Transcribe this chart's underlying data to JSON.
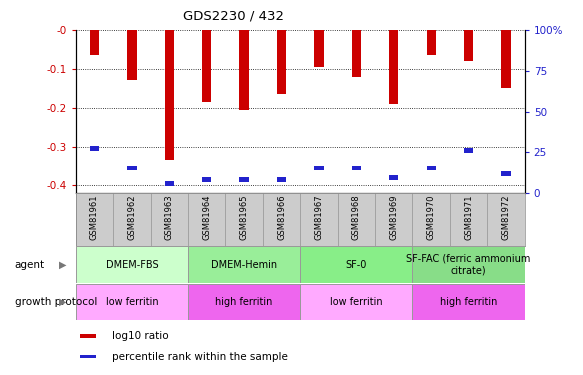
{
  "title": "GDS2230 / 432",
  "samples": [
    "GSM81961",
    "GSM81962",
    "GSM81963",
    "GSM81964",
    "GSM81965",
    "GSM81966",
    "GSM81967",
    "GSM81968",
    "GSM81969",
    "GSM81970",
    "GSM81971",
    "GSM81972"
  ],
  "log10_ratio": [
    -0.065,
    -0.13,
    -0.335,
    -0.185,
    -0.205,
    -0.165,
    -0.095,
    -0.12,
    -0.19,
    -0.065,
    -0.08,
    -0.15
  ],
  "percentile_pos": [
    -0.305,
    -0.355,
    -0.395,
    -0.385,
    -0.385,
    -0.385,
    -0.355,
    -0.355,
    -0.38,
    -0.355,
    -0.31,
    -0.37
  ],
  "ylim_left": [
    -0.42,
    0.0
  ],
  "ylim_right": [
    0,
    100
  ],
  "yticks_left": [
    0.0,
    -0.1,
    -0.2,
    -0.3,
    -0.4
  ],
  "ytick_labels_left": [
    "-0",
    "-0.1",
    "-0.2",
    "-0.3",
    "-0.4"
  ],
  "yticks_right": [
    100,
    75,
    50,
    25,
    0
  ],
  "ytick_labels_right": [
    "100%",
    "75",
    "50",
    "25",
    "0"
  ],
  "bar_color": "#cc0000",
  "percentile_color": "#2222cc",
  "agent_groups": [
    {
      "label": "DMEM-FBS",
      "start": 0,
      "end": 3,
      "color": "#ccffcc"
    },
    {
      "label": "DMEM-Hemin",
      "start": 3,
      "end": 6,
      "color": "#99ee99"
    },
    {
      "label": "SF-0",
      "start": 6,
      "end": 9,
      "color": "#88ee88"
    },
    {
      "label": "SF-FAC (ferric ammonium\ncitrate)",
      "start": 9,
      "end": 12,
      "color": "#88dd88"
    }
  ],
  "protocol_groups": [
    {
      "label": "low ferritin",
      "start": 0,
      "end": 3,
      "color": "#ffaaff"
    },
    {
      "label": "high ferritin",
      "start": 3,
      "end": 6,
      "color": "#ee66ee"
    },
    {
      "label": "low ferritin",
      "start": 6,
      "end": 9,
      "color": "#ffaaff"
    },
    {
      "label": "high ferritin",
      "start": 9,
      "end": 12,
      "color": "#ee66ee"
    }
  ],
  "legend_items": [
    {
      "label": "log10 ratio",
      "color": "#cc0000"
    },
    {
      "label": "percentile rank within the sample",
      "color": "#2222cc"
    }
  ],
  "bar_width": 0.25,
  "tick_label_color_left": "#cc0000",
  "tick_label_color_right": "#2222cc",
  "background_fig": "#ffffff",
  "background_plot": "#ffffff",
  "x_label_area_color": "#cccccc",
  "grid_color": "#333333"
}
